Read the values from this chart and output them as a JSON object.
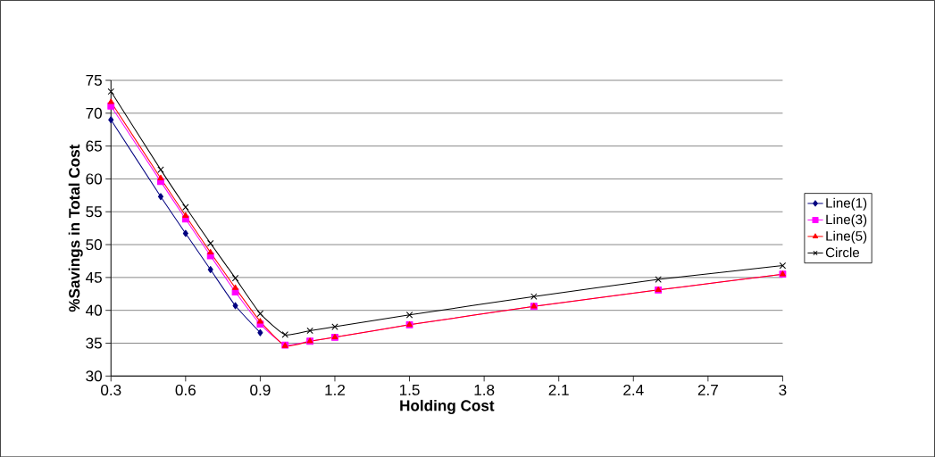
{
  "chart_data": {
    "type": "line",
    "xlabel": "Holding Cost",
    "ylabel": "%Savings in Total Cost",
    "x": [
      0.3,
      0.5,
      0.6,
      0.7,
      0.8,
      0.9,
      1.0,
      1.1,
      1.2,
      1.5,
      2.0,
      2.5,
      3.0
    ],
    "series": [
      {
        "name": "Line(1)",
        "color": "#000080",
        "marker": "diamond",
        "values": [
          69,
          57.3,
          51.7,
          46.2,
          40.7,
          36.6,
          null,
          null,
          null,
          null,
          null,
          null,
          null
        ]
      },
      {
        "name": "Line(3)",
        "color": "#ff00ff",
        "marker": "square",
        "values": [
          71.1,
          59.6,
          53.9,
          48.3,
          42.8,
          37.9,
          34.7,
          35.3,
          35.9,
          37.8,
          40.6,
          43.1,
          45.5
        ]
      },
      {
        "name": "Line(5)",
        "color": "#ff0000",
        "marker": "triangle",
        "values": [
          71.7,
          60.1,
          54.4,
          48.8,
          43.4,
          38.3,
          34.6,
          35.3,
          35.9,
          37.8,
          40.6,
          43.1,
          45.5
        ]
      },
      {
        "name": "Circle",
        "color": "#000000",
        "marker": "cross",
        "values": [
          73.3,
          61.4,
          55.7,
          50.2,
          44.9,
          39.5,
          36.3,
          36.9,
          37.5,
          39.3,
          42.1,
          44.7,
          46.8
        ]
      }
    ],
    "xlim": [
      0.3,
      3
    ],
    "ylim": [
      30,
      75
    ],
    "xticks": [
      0.3,
      0.6,
      0.9,
      1.2,
      1.5,
      1.8,
      2.1,
      2.4,
      2.7,
      3
    ],
    "yticks": [
      30,
      35,
      40,
      45,
      50,
      55,
      60,
      65,
      70,
      75
    ],
    "grid": "y",
    "legend": "right",
    "line_style": "solid"
  }
}
